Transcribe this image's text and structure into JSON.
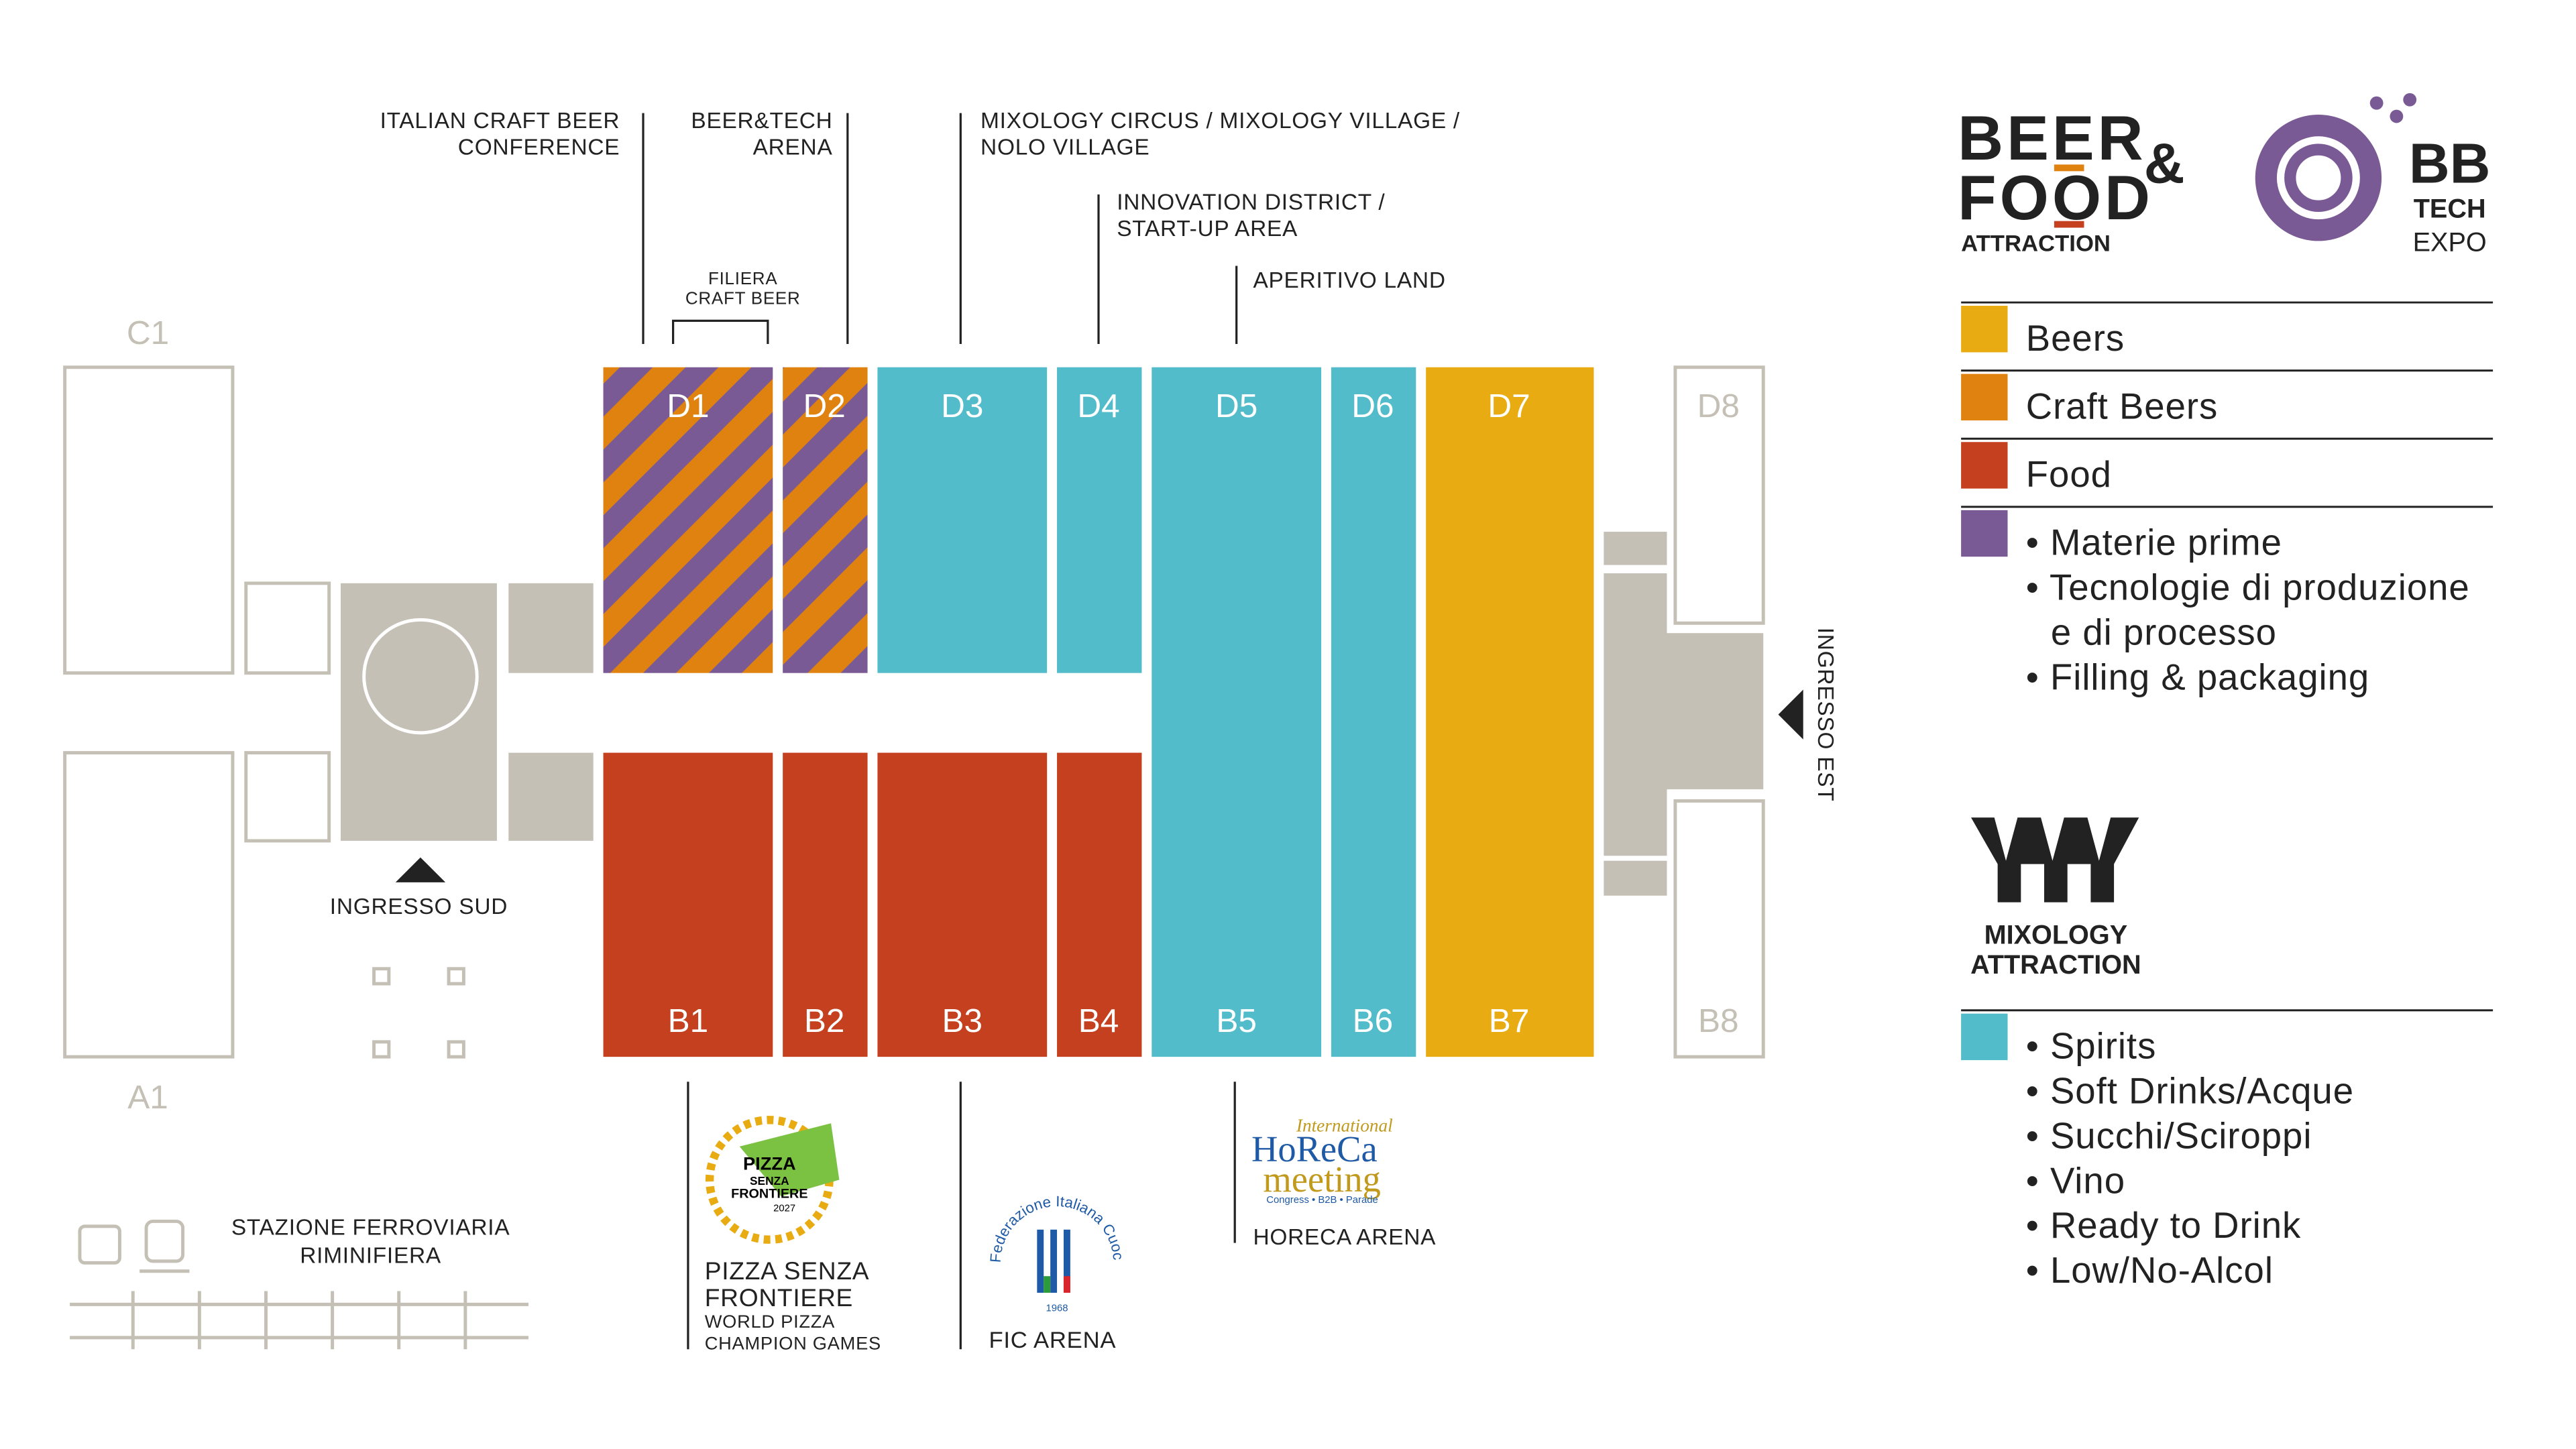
{
  "halls": {
    "C1": "C1",
    "A1": "A1",
    "D1": "D1",
    "D2": "D2",
    "D3": "D3",
    "D4": "D4",
    "D5": "D5",
    "D6": "D6",
    "D7": "D7",
    "D8": "D8",
    "B1": "B1",
    "B2": "B2",
    "B3": "B3",
    "B4": "B4",
    "B5": "B5",
    "B6": "B6",
    "B7": "B7",
    "B8": "B8"
  },
  "top_labels": {
    "conference": [
      "ITALIAN CRAFT BEER",
      "CONFERENCE"
    ],
    "arena": [
      "BEER&TECH",
      "ARENA"
    ],
    "filiera": [
      "FILIERA",
      "CRAFT BEER"
    ],
    "mixology": [
      "MIXOLOGY CIRCUS / MIXOLOGY VILLAGE /",
      "NOLO VILLAGE"
    ],
    "innovation": [
      "INNOVATION DISTRICT /",
      "START-UP AREA"
    ],
    "aperitivo": "APERITIVO LAND"
  },
  "entrances": {
    "south": "INGRESSO SUD",
    "east": "INGRESSO EST"
  },
  "station": [
    "STAZIONE FERROVIARIA",
    "RIMINIFIERA"
  ],
  "bottom_labels": {
    "pizza": [
      "PIZZA SENZA",
      "FRONTIERE"
    ],
    "pizza_sub": [
      "WORLD PIZZA",
      "CHAMPION GAMES"
    ],
    "fic": "FIC ARENA",
    "horeca": "HORECA ARENA"
  },
  "logos": {
    "pizza": [
      "PIZZA",
      "SENZA",
      "FRONTIERE",
      "2027"
    ],
    "fic": [
      "Federazione Italiana Cuochi",
      "1968"
    ],
    "horeca": [
      "International",
      "HoReCa",
      "meeting",
      "Congress • B2B • Parade"
    ],
    "beer_food": [
      "BEER",
      "FOOD",
      "&",
      "ATTRACTION"
    ],
    "bb_tech": [
      "BB",
      "TECH",
      "EXPO"
    ],
    "mixology": [
      "MIXOLOGY",
      "ATTRACTION"
    ]
  },
  "legend_beer_food": [
    {
      "label": "Beers",
      "color": "#e8ac12"
    },
    {
      "label": "Craft Beers",
      "color": "#e0820f"
    },
    {
      "label": "Food",
      "color": "#c4401f"
    },
    {
      "label": [
        "• Materie prime",
        "• Tecnologie di produzione",
        "e di processo",
        "• Filling & packaging"
      ],
      "color": "#7a5a94"
    }
  ],
  "legend_mixology": {
    "label": [
      "• Spirits",
      "• Soft Drinks/Acque",
      "• Succhi/Sciroppi",
      "• Vino",
      "• Ready to Drink",
      "• Low/No-Alcol"
    ],
    "color": "#52bccb"
  }
}
